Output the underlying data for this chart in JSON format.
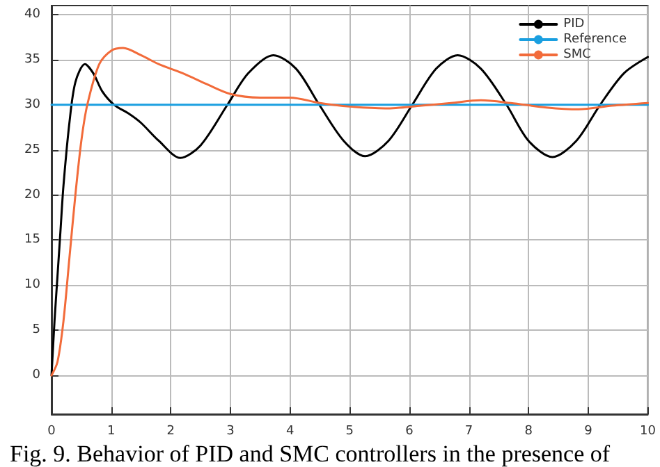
{
  "chart_data": {
    "type": "line",
    "annotations": [
      "Fig. 9. Behavior of PID and SMC controllers in the presence of"
    ],
    "xlim": [
      0,
      10
    ],
    "xticks": [
      0,
      1,
      2,
      3,
      4,
      5,
      6,
      7,
      8,
      9,
      10
    ],
    "ylim": [
      -4.3,
      41
    ],
    "yticks": [
      0,
      5,
      10,
      15,
      20,
      25,
      30,
      35,
      40
    ],
    "grid": true,
    "legend": "top right",
    "line_style": "solid",
    "marker": "none",
    "series": [
      {
        "name": "PID",
        "color": "#000000",
        "x": [
          0,
          0.05,
          0.1,
          0.15,
          0.2,
          0.3,
          0.4,
          0.56,
          0.7,
          0.85,
          1.05,
          1.3,
          1.5,
          1.8,
          2.16,
          2.5,
          2.95,
          3.3,
          3.72,
          4.1,
          4.49,
          4.9,
          5.26,
          5.65,
          6.05,
          6.45,
          6.81,
          7.2,
          7.63,
          8.0,
          8.4,
          8.8,
          9.2,
          9.6,
          10
        ],
        "values": [
          0,
          6,
          11,
          16,
          21,
          28,
          32.5,
          34.5,
          33.5,
          31.5,
          30,
          29,
          28,
          26,
          24.1,
          25.5,
          30,
          33.5,
          35.5,
          34,
          30,
          26,
          24.3,
          26,
          30,
          34,
          35.5,
          34,
          30,
          26,
          24.2,
          26,
          30,
          33.5,
          35.3
        ]
      },
      {
        "name": "Reference",
        "color": "#1a9fe0",
        "x": [
          0,
          10
        ],
        "values": [
          30,
          30
        ]
      },
      {
        "name": "SMC",
        "color": "#f26b3a",
        "x": [
          0,
          0.1,
          0.2,
          0.3,
          0.4,
          0.5,
          0.6,
          0.8,
          1.0,
          1.2,
          1.5,
          1.8,
          2.2,
          2.6,
          3.0,
          3.5,
          4.0,
          4.5,
          5.0,
          5.6,
          6.2,
          6.7,
          7.2,
          7.7,
          8.3,
          8.84,
          9.4,
          10
        ],
        "values": [
          0,
          1.5,
          6,
          13,
          20,
          26,
          30,
          34.5,
          36,
          36.3,
          35.5,
          34.5,
          33.5,
          32.3,
          31.2,
          30.8,
          30.8,
          30.2,
          29.8,
          29.6,
          29.9,
          30.2,
          30.5,
          30.2,
          29.7,
          29.5,
          29.9,
          30.2
        ]
      }
    ]
  }
}
